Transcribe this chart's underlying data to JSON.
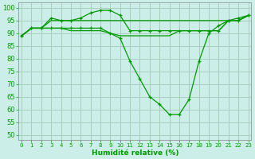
{
  "xlabel": "Humidité relative (%)",
  "background_color": "#cceee8",
  "grid_color": "#aaccbb",
  "line_color": "#009900",
  "xlim": [
    -0.3,
    23.3
  ],
  "ylim": [
    48,
    102
  ],
  "yticks": [
    50,
    55,
    60,
    65,
    70,
    75,
    80,
    85,
    90,
    95,
    100
  ],
  "xticks": [
    0,
    1,
    2,
    3,
    4,
    5,
    6,
    7,
    8,
    9,
    10,
    11,
    12,
    13,
    14,
    15,
    16,
    17,
    18,
    19,
    20,
    21,
    22,
    23
  ],
  "line_peaked": [
    89,
    92,
    92,
    96,
    95,
    95,
    96,
    98,
    99,
    99,
    97,
    91,
    91,
    91,
    91,
    91,
    91,
    91,
    91,
    91,
    91,
    95,
    96,
    97
  ],
  "line_flat_upper": [
    89,
    92,
    92,
    95,
    95,
    95,
    95,
    95,
    95,
    95,
    95,
    95,
    95,
    95,
    95,
    95,
    95,
    95,
    95,
    95,
    95,
    95,
    95,
    97
  ],
  "line_dip": [
    89,
    92,
    92,
    92,
    92,
    92,
    92,
    92,
    92,
    90,
    88,
    79,
    72,
    65,
    62,
    58,
    58,
    64,
    79,
    90,
    93,
    95,
    95,
    97
  ],
  "line_flat_lower": [
    89,
    92,
    92,
    92,
    92,
    91,
    91,
    91,
    91,
    90,
    89,
    89,
    89,
    89,
    89,
    89,
    91,
    91,
    91,
    91,
    91,
    95,
    95,
    97
  ]
}
